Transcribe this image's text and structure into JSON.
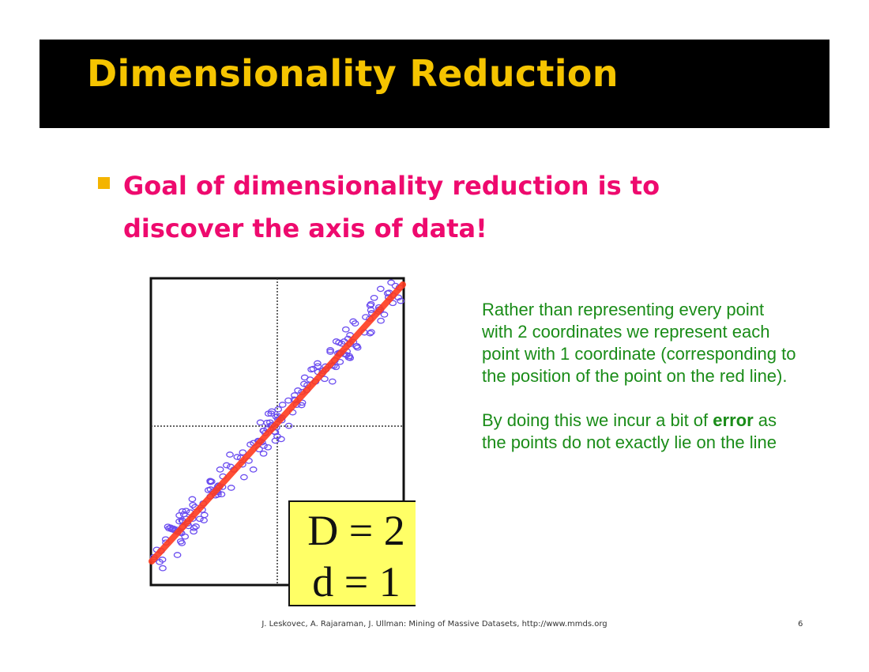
{
  "slide": {
    "title": "Dimensionality Reduction",
    "bullet": "Goal of dimensionality reduction is to discover the axis of data!",
    "paragraph1": "Rather than representing every point with 2 coordinates we represent each point with 1 coordinate (corresponding to the position of the point on the red line).",
    "paragraph2_pre": "By doing this we incur a bit of ",
    "paragraph2_bold": "error",
    "paragraph2_post": " as the points do not exactly lie on the line",
    "footer": "J. Leskovec, A. Rajaraman, J. Ullman: Mining of Massive Datasets, http://www.mmds.org",
    "page_number": "6"
  },
  "figure": {
    "label_D": "D = 2",
    "label_d": "d = 1",
    "colors": {
      "points": "#6a4cf0",
      "line": "#ff3b1f",
      "label_box": "#ffff66",
      "text": "#1a8c18",
      "title": "#f5c400",
      "bullet": "#ee0a6e"
    }
  }
}
